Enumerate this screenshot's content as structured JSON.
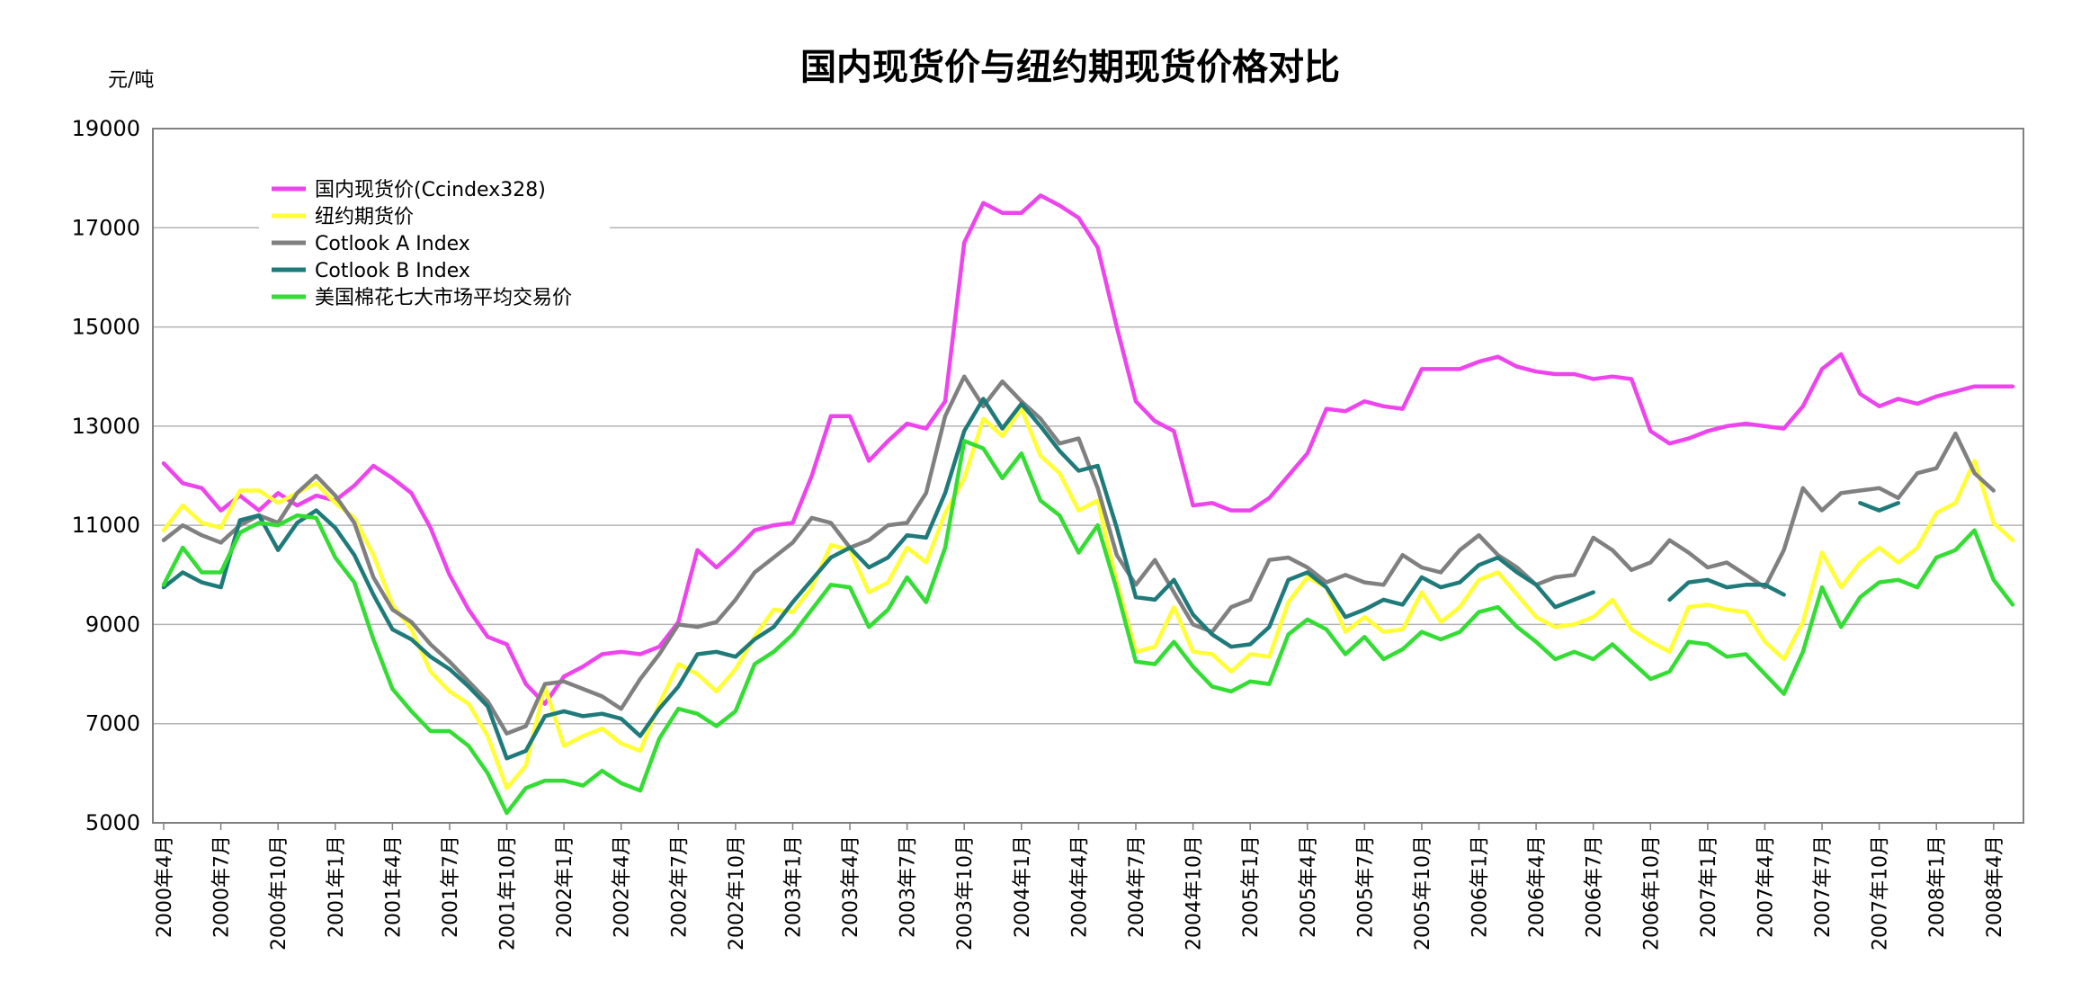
{
  "chart_data": {
    "type": "line",
    "title": "国内现货价与纽约期现货价格对比",
    "ylabel": "元/吨",
    "ylim": [
      5000,
      19000
    ],
    "yticks": [
      5000,
      7000,
      9000,
      11000,
      13000,
      15000,
      17000,
      19000
    ],
    "grid": true,
    "legend_position": "top-left",
    "x_tick_labels": [
      "2000年4月",
      "2000年7月",
      "2000年10月",
      "2001年1月",
      "2001年4月",
      "2001年7月",
      "2001年10月",
      "2002年1月",
      "2002年4月",
      "2002年7月",
      "2002年10月",
      "2003年1月",
      "2003年4月",
      "2003年7月",
      "2003年10月",
      "2004年1月",
      "2004年4月",
      "2004年7月",
      "2004年10月",
      "2005年1月",
      "2005年4月",
      "2005年7月",
      "2005年10月",
      "2006年1月",
      "2006年4月",
      "2006年7月",
      "2006年10月",
      "2007年1月",
      "2007年4月",
      "2007年7月",
      "2007年10月",
      "2008年1月",
      "2008年4月"
    ],
    "series": [
      {
        "name": "国内现货价(Ccindex328)",
        "color": "#ee44ee",
        "values": [
          12250,
          11850,
          11750,
          11300,
          11600,
          11300,
          11650,
          11400,
          11600,
          11500,
          11800,
          12200,
          11950,
          11650,
          10950,
          10000,
          9300,
          8750,
          8600,
          7800,
          7400,
          7950,
          8150,
          8400,
          8450,
          8400,
          8550,
          9050,
          10500,
          10150,
          10500,
          10900,
          11000,
          11050,
          12000,
          13200,
          13200,
          12300,
          12700,
          13050,
          12950,
          13500,
          16700,
          17500,
          17300,
          17300,
          17650,
          17450,
          17200,
          16600,
          15000,
          13500,
          13100,
          12900,
          11400,
          11450,
          11300,
          11300,
          11550,
          12000,
          12450,
          13350,
          13300,
          13500,
          13400,
          13350,
          14150,
          14150,
          14150,
          14300,
          14400,
          14200,
          14100,
          14050,
          14050,
          13950,
          14000,
          13950,
          12900,
          12650,
          12750,
          12900,
          13000,
          13050,
          13000,
          12950,
          13400,
          14150,
          14450,
          13650,
          13400,
          13550,
          13450,
          13600,
          13700,
          13800,
          13800,
          13800
        ]
      },
      {
        "name": "纽约期货价",
        "color": "#ffff33",
        "values": [
          10900,
          11400,
          11050,
          10950,
          11700,
          11700,
          11450,
          11650,
          11850,
          11450,
          11150,
          10400,
          9400,
          8900,
          8050,
          7650,
          7400,
          6750,
          5700,
          6150,
          7750,
          6550,
          6750,
          6900,
          6600,
          6450,
          7400,
          8200,
          8000,
          7650,
          8100,
          8750,
          9300,
          9250,
          9750,
          10600,
          10500,
          9650,
          9850,
          10550,
          10250,
          11250,
          11950,
          13150,
          12800,
          13350,
          12400,
          12050,
          11300,
          11500,
          9850,
          8450,
          8550,
          9350,
          8450,
          8400,
          8050,
          8400,
          8350,
          9450,
          9950,
          9750,
          8850,
          9150,
          8850,
          8900,
          9650,
          9050,
          9350,
          9900,
          10050,
          9600,
          9150,
          8950,
          9000,
          9150,
          9500,
          8900,
          8650,
          8450,
          9350,
          9400,
          9300,
          9250,
          8650,
          8300,
          9050,
          10450,
          9750,
          10250,
          10550,
          10250,
          10550,
          11250,
          11450,
          12300,
          11050,
          10700
        ]
      },
      {
        "name": "Cotlook A Index",
        "color": "#808080",
        "values": [
          10700,
          11000,
          10800,
          10650,
          11000,
          11200,
          11050,
          11650,
          12000,
          11600,
          11050,
          9950,
          9300,
          9050,
          8600,
          8250,
          7850,
          7450,
          6800,
          6950,
          7800,
          7850,
          7700,
          7550,
          7300,
          7900,
          8400,
          9000,
          8950,
          9050,
          9500,
          10050,
          10350,
          10650,
          11150,
          11050,
          10550,
          10700,
          11000,
          11050,
          11650,
          13200,
          14000,
          13400,
          13900,
          13500,
          13150,
          12650,
          12750,
          11750,
          10400,
          9800,
          10300,
          9650,
          9000,
          8850,
          9350,
          9500,
          10300,
          10350,
          10150,
          9850,
          10000,
          9850,
          9800,
          10400,
          10150,
          10050,
          10500,
          10800,
          10400,
          10150,
          9800,
          9950,
          10000,
          10750,
          10500,
          10100,
          10250,
          10700,
          10450,
          10150,
          10250,
          10000,
          9750,
          10500,
          11750,
          11300,
          11650,
          11700,
          11750,
          11550,
          12050,
          12150,
          12850,
          12050,
          11700
        ]
      },
      {
        "name": "Cotlook B Index",
        "color": "#1f7a7a",
        "values": [
          9750,
          10050,
          9850,
          9750,
          11100,
          11200,
          10500,
          11050,
          11300,
          10950,
          10400,
          9600,
          8900,
          8700,
          8350,
          8100,
          7750,
          7350,
          6300,
          6450,
          7150,
          7250,
          7150,
          7200,
          7100,
          6750,
          7300,
          7750,
          8400,
          8450,
          8350,
          8700,
          8950,
          9450,
          9900,
          10350,
          10550,
          10150,
          10350,
          10800,
          10750,
          11650,
          12900,
          13550,
          12950,
          13450,
          13000,
          12500,
          12100,
          12200,
          10950,
          9550,
          9500,
          9900,
          9200,
          8800,
          8550,
          8600,
          8950,
          9900,
          10050,
          9750,
          9150,
          9300,
          9500,
          9400,
          9950,
          9750,
          9850,
          10200,
          10350,
          10050,
          9800,
          9350,
          9500,
          9650,
          null,
          null,
          null,
          9500,
          9850,
          9900,
          9750,
          9800,
          9800,
          9600,
          null,
          null,
          null,
          11450,
          11300,
          11450
        ]
      },
      {
        "name": "美国棉花七大市场平均交易价",
        "color": "#33dd33",
        "values": [
          9800,
          10550,
          10050,
          10050,
          10850,
          11050,
          11000,
          11200,
          11150,
          10350,
          9850,
          8700,
          7700,
          7250,
          6850,
          6850,
          6550,
          6000,
          5200,
          5700,
          5850,
          5850,
          5750,
          6050,
          5800,
          5650,
          6700,
          7300,
          7200,
          6950,
          7250,
          8200,
          8450,
          8800,
          9300,
          9800,
          9750,
          8950,
          9300,
          9950,
          9450,
          10550,
          12700,
          12550,
          11950,
          12450,
          11500,
          11200,
          10450,
          11000,
          9700,
          8250,
          8200,
          8650,
          8150,
          7750,
          7650,
          7850,
          7800,
          8800,
          9100,
          8900,
          8400,
          8750,
          8300,
          8500,
          8850,
          8700,
          8850,
          9250,
          9350,
          8950,
          8650,
          8300,
          8450,
          8300,
          8600,
          8250,
          7900,
          8050,
          8650,
          8600,
          8350,
          8400,
          8000,
          7600,
          8450,
          9750,
          8950,
          9550,
          9850,
          9900,
          9750,
          10350,
          10500,
          10900,
          9900,
          9400
        ]
      }
    ]
  }
}
